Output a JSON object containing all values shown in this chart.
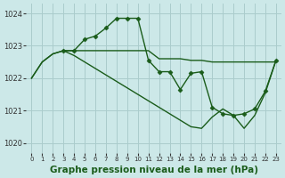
{
  "bg_color": "#cce8e8",
  "grid_color": "#aacccc",
  "line_color": "#1a5c1a",
  "marker_color": "#1a5c1a",
  "series_flat_x": [
    0,
    1,
    2,
    3,
    4,
    5,
    6,
    7,
    8,
    9,
    10,
    11,
    12,
    13,
    14,
    15,
    16,
    17,
    18,
    19,
    20,
    21,
    22,
    23
  ],
  "series_flat_y": [
    1022.0,
    1022.5,
    1022.75,
    1022.85,
    1022.85,
    1022.85,
    1022.85,
    1022.85,
    1022.85,
    1022.85,
    1022.85,
    1022.85,
    1022.6,
    1022.6,
    1022.6,
    1022.55,
    1022.55,
    1022.5,
    1022.5,
    1022.5,
    1022.5,
    1022.5,
    1022.5,
    1022.5
  ],
  "series_peak_x": [
    3,
    4,
    5,
    6,
    7,
    8,
    9,
    10,
    11,
    12,
    13,
    14,
    15,
    16,
    17,
    18,
    19,
    20,
    21,
    22,
    23
  ],
  "series_peak_y": [
    1022.85,
    1022.85,
    1023.2,
    1023.3,
    1023.55,
    1023.85,
    1023.85,
    1023.85,
    1022.55,
    1022.2,
    1022.2,
    1021.65,
    1022.15,
    1022.2,
    1021.1,
    1020.9,
    1020.85,
    1020.9,
    1021.05,
    1021.6,
    1022.55
  ],
  "series_diag_x": [
    3,
    4,
    5,
    6,
    7,
    8,
    9,
    10,
    11,
    12,
    13,
    14,
    15,
    16,
    17,
    18,
    19,
    20,
    21,
    22,
    23
  ],
  "series_diag_y": [
    1022.85,
    1022.7,
    1022.5,
    1022.3,
    1022.1,
    1021.9,
    1021.7,
    1021.5,
    1021.3,
    1021.1,
    1020.9,
    1020.7,
    1020.5,
    1020.45,
    1020.8,
    1021.05,
    1020.85,
    1020.45,
    1020.85,
    1021.55,
    1022.55
  ],
  "xlabel": "Graphe pression niveau de la mer (hPa)",
  "xlabel_fontsize": 7.5,
  "ylabel_ticks": [
    1020,
    1021,
    1022,
    1023,
    1024
  ],
  "xtick_labels": [
    "0",
    "1",
    "2",
    "3",
    "4",
    "5",
    "6",
    "7",
    "8",
    "9",
    "10",
    "11",
    "12",
    "13",
    "14",
    "15",
    "16",
    "17",
    "18",
    "19",
    "20",
    "21",
    "22",
    "23"
  ],
  "xticks": [
    0,
    1,
    2,
    3,
    4,
    5,
    6,
    7,
    8,
    9,
    10,
    11,
    12,
    13,
    14,
    15,
    16,
    17,
    18,
    19,
    20,
    21,
    22,
    23
  ],
  "xlim": [
    -0.5,
    23.5
  ],
  "ylim": [
    1019.7,
    1024.3
  ]
}
